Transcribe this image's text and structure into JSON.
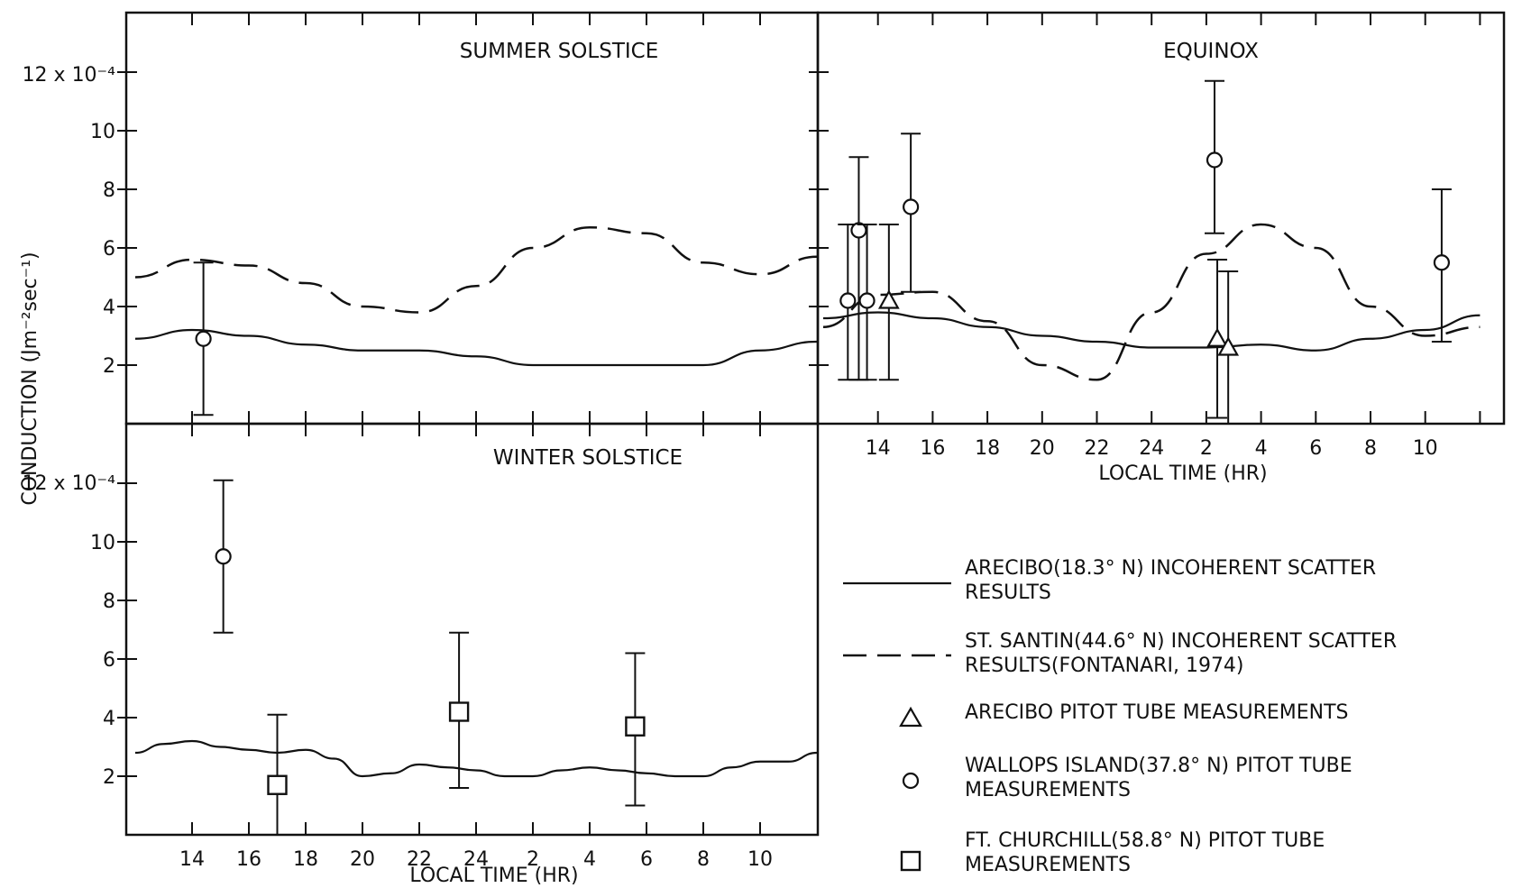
{
  "chart_data": [
    {
      "panel": "summer",
      "type": "line",
      "title": "SUMMER SOLSTICE",
      "ylabel": "CONDUCTION (Jm⁻²sec⁻¹)",
      "y_units_label": "12 x 10⁻⁴",
      "yticks": [
        "2",
        "4",
        "6",
        "8",
        "10"
      ],
      "ylim": [
        0,
        14
      ],
      "x_hours": [
        12,
        14,
        16,
        18,
        20,
        22,
        24,
        26,
        28,
        30,
        32,
        34,
        36
      ],
      "arecibo_incoherent": [
        2.9,
        3.2,
        3.0,
        2.7,
        2.5,
        2.5,
        2.3,
        2.0,
        2.0,
        2.0,
        2.0,
        2.5,
        2.8
      ],
      "st_santin_incoherent": [
        5.0,
        5.6,
        5.4,
        4.8,
        4.0,
        3.8,
        4.7,
        6.0,
        6.7,
        6.5,
        5.5,
        5.1,
        5.7
      ],
      "wallops_points": [
        {
          "x": 14.4,
          "y": 2.9,
          "low": 0.3,
          "high": 5.5
        }
      ]
    },
    {
      "panel": "equinox",
      "type": "line",
      "title": "EQUINOX",
      "xlabel": "LOCAL TIME (HR)",
      "xticks": [
        "14",
        "16",
        "18",
        "20",
        "22",
        "24",
        "2",
        "4",
        "6",
        "8",
        "10"
      ],
      "ylim": [
        0,
        14
      ],
      "x_hours": [
        12,
        14,
        16,
        18,
        20,
        22,
        24,
        26,
        28,
        30,
        32,
        34,
        36
      ],
      "arecibo_incoherent": [
        3.6,
        3.8,
        3.6,
        3.3,
        3.0,
        2.8,
        2.6,
        2.6,
        2.7,
        2.5,
        2.9,
        3.2,
        3.7
      ],
      "st_santin_incoherent": [
        3.3,
        4.4,
        4.5,
        3.5,
        2.0,
        1.5,
        3.8,
        5.8,
        6.8,
        6.0,
        4.0,
        3.0,
        3.3
      ],
      "wallops_points": [
        {
          "x": 12.9,
          "y": 4.2,
          "low": 1.5,
          "high": 6.8
        },
        {
          "x": 13.3,
          "y": 6.6,
          "low": 1.5,
          "high": 9.1
        },
        {
          "x": 13.6,
          "y": 4.2,
          "low": 1.5,
          "high": 6.8
        },
        {
          "x": 15.2,
          "y": 7.4,
          "low": 4.5,
          "high": 9.9
        },
        {
          "x": 26.3,
          "y": 9.0,
          "low": 6.5,
          "high": 11.7
        },
        {
          "x": 34.6,
          "y": 5.5,
          "low": 2.8,
          "high": 8.0
        }
      ],
      "arecibo_pitot_points": [
        {
          "x": 14.4,
          "y": 4.2,
          "low": 1.5,
          "high": 6.8
        },
        {
          "x": 26.4,
          "y": 2.9,
          "low": 0.2,
          "high": 5.6
        },
        {
          "x": 26.8,
          "y": 2.6,
          "low": 0.0,
          "high": 5.2
        }
      ]
    },
    {
      "panel": "winter",
      "type": "line",
      "title": "WINTER SOLSTICE",
      "xlabel": "LOCAL TIME (HR)",
      "y_units_label": "12 x 10⁻⁴",
      "yticks": [
        "2",
        "4",
        "6",
        "8",
        "10"
      ],
      "xticks": [
        "14",
        "16",
        "18",
        "20",
        "22",
        "24",
        "2",
        "4",
        "6",
        "8",
        "10"
      ],
      "ylim": [
        0,
        14
      ],
      "x_hours": [
        12,
        13,
        14,
        15,
        16,
        17,
        18,
        19,
        20,
        21,
        22,
        23,
        24,
        25,
        26,
        27,
        28,
        29,
        30,
        31,
        32,
        33,
        34,
        35,
        36
      ],
      "arecibo_incoherent": [
        2.8,
        3.1,
        3.2,
        3.0,
        2.9,
        2.8,
        2.9,
        2.6,
        2.0,
        2.1,
        2.4,
        2.3,
        2.2,
        2.0,
        2.0,
        2.2,
        2.3,
        2.2,
        2.1,
        2.0,
        2.0,
        2.3,
        2.5,
        2.5,
        2.8
      ],
      "wallops_points": [
        {
          "x": 15.1,
          "y": 9.5,
          "low": 6.9,
          "high": 12.1
        }
      ],
      "churchill_points": [
        {
          "x": 17.0,
          "y": 1.7,
          "low": 0.0,
          "high": 4.1
        },
        {
          "x": 23.4,
          "y": 4.2,
          "low": 1.6,
          "high": 6.9
        },
        {
          "x": 29.6,
          "y": 3.7,
          "low": 1.0,
          "high": 6.2
        }
      ]
    }
  ],
  "legend": [
    {
      "symbol": "solid-line",
      "text": [
        "ARECIBO(18.3° N) INCOHERENT SCATTER",
        "RESULTS"
      ]
    },
    {
      "symbol": "dashed-line",
      "text": [
        "ST. SANTIN(44.6° N) INCOHERENT SCATTER",
        "RESULTS(FONTANARI, 1974)"
      ]
    },
    {
      "symbol": "triangle",
      "text": [
        "ARECIBO PITOT TUBE MEASUREMENTS"
      ]
    },
    {
      "symbol": "circle",
      "text": [
        "WALLOPS ISLAND(37.8° N) PITOT TUBE",
        "MEASUREMENTS"
      ]
    },
    {
      "symbol": "square",
      "text": [
        "FT. CHURCHILL(58.8° N) PITOT TUBE",
        "MEASUREMENTS"
      ]
    }
  ]
}
